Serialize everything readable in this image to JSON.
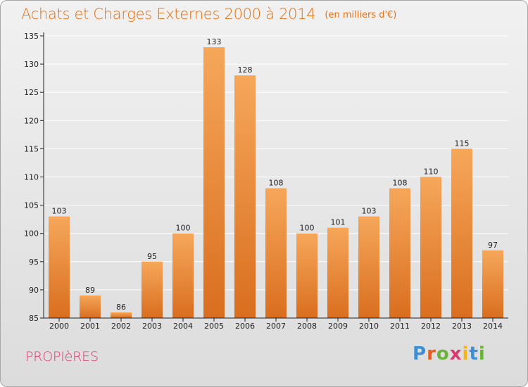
{
  "header": {
    "title": "Achats et Charges Externes 2000 à 2014",
    "unit_note": "(en milliers d'€)"
  },
  "footer": {
    "commune": "PROPIèRES",
    "brand": "Proxiti"
  },
  "colors": {
    "bar_top": "#f6a75a",
    "bar_bottom": "#d96e1f",
    "title": "#e46f15",
    "commune": "#d83b6f",
    "grid": "#ffffff",
    "axis": "#222222"
  },
  "chart_data": {
    "type": "bar",
    "title": "Achats et Charges Externes 2000 à 2014",
    "subtitle": "(en milliers d'€)",
    "xlabel": "",
    "ylabel": "",
    "categories": [
      "2000",
      "2001",
      "2002",
      "2003",
      "2004",
      "2005",
      "2006",
      "2007",
      "2008",
      "2009",
      "2010",
      "2011",
      "2012",
      "2013",
      "2014"
    ],
    "values": [
      103,
      89,
      86,
      95,
      100,
      133,
      128,
      108,
      100,
      101,
      103,
      108,
      110,
      115,
      97
    ],
    "ylim": [
      85,
      135
    ],
    "yticks": [
      85,
      90,
      95,
      100,
      105,
      110,
      115,
      120,
      125,
      130,
      135
    ],
    "grid": true,
    "data_labels": true,
    "legend": "none"
  }
}
